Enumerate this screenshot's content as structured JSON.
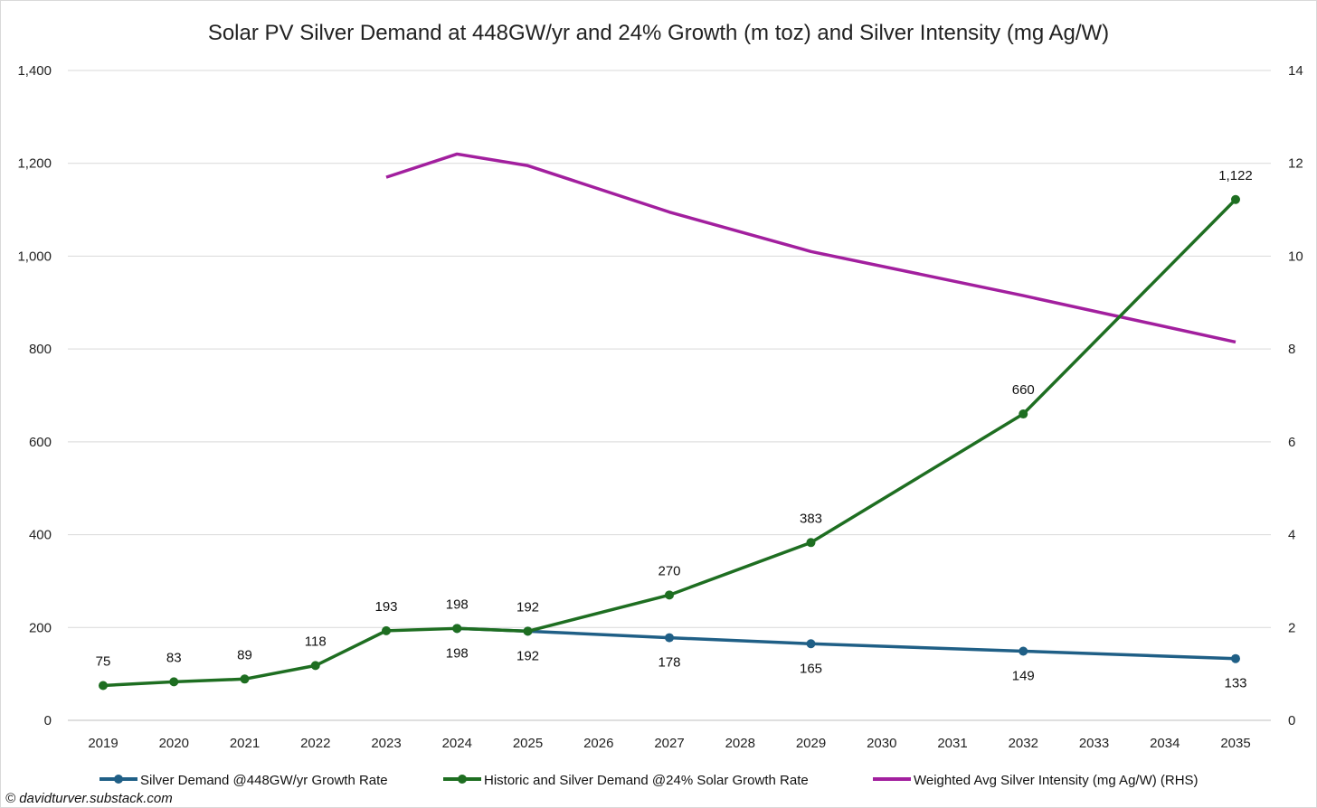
{
  "chart_data": {
    "type": "line",
    "title": "Solar PV Silver Demand at 448GW/yr and 24% Growth (m toz) and Silver Intensity (mg Ag/W)",
    "categories": [
      "2019",
      "2020",
      "2021",
      "2022",
      "2023",
      "2024",
      "2025",
      "2026",
      "2027",
      "2028",
      "2029",
      "2030",
      "2031",
      "2032",
      "2033",
      "2034",
      "2035"
    ],
    "y_left": {
      "min": 0,
      "max": 1400,
      "step": 200,
      "tick_labels": [
        "0",
        "200",
        "400",
        "600",
        "800",
        "1,000",
        "1,200",
        "1,400"
      ]
    },
    "y_right": {
      "min": 0,
      "max": 14,
      "step": 2,
      "tick_labels": [
        "0",
        "2",
        "4",
        "6",
        "8",
        "10",
        "12",
        "14"
      ]
    },
    "grid": true,
    "legend_position": "bottom",
    "series": [
      {
        "name": "Silver Demand @448GW/yr Growth Rate",
        "color": "#1f5f86",
        "axis": "left",
        "markers": true,
        "points": [
          {
            "x": "2024",
            "y": 198,
            "label": "198"
          },
          {
            "x": "2025",
            "y": 192,
            "label": "192"
          },
          {
            "x": "2027",
            "y": 178,
            "label": "178"
          },
          {
            "x": "2029",
            "y": 165,
            "label": "165"
          },
          {
            "x": "2032",
            "y": 149,
            "label": "149"
          },
          {
            "x": "2035",
            "y": 133,
            "label": "133"
          }
        ]
      },
      {
        "name": "Historic and Silver Demand @24% Solar Growth Rate",
        "color": "#1e6e21",
        "axis": "left",
        "markers": true,
        "points": [
          {
            "x": "2019",
            "y": 75,
            "label": "75"
          },
          {
            "x": "2020",
            "y": 83,
            "label": "83"
          },
          {
            "x": "2021",
            "y": 89,
            "label": "89"
          },
          {
            "x": "2022",
            "y": 118,
            "label": "118"
          },
          {
            "x": "2023",
            "y": 193,
            "label": "193"
          },
          {
            "x": "2024",
            "y": 198,
            "label": "198"
          },
          {
            "x": "2025",
            "y": 192,
            "label": "192"
          },
          {
            "x": "2027",
            "y": 270,
            "label": "270"
          },
          {
            "x": "2029",
            "y": 383,
            "label": "383"
          },
          {
            "x": "2032",
            "y": 660,
            "label": "660"
          },
          {
            "x": "2035",
            "y": 1122,
            "label": "1,122"
          }
        ]
      },
      {
        "name": "Weighted Avg Silver Intensity (mg Ag/W) (RHS)",
        "color": "#a21f9e",
        "axis": "right",
        "markers": false,
        "points": [
          {
            "x": "2023",
            "y": 11.7
          },
          {
            "x": "2024",
            "y": 12.2
          },
          {
            "x": "2025",
            "y": 11.95
          },
          {
            "x": "2027",
            "y": 10.95
          },
          {
            "x": "2029",
            "y": 10.1
          },
          {
            "x": "2032",
            "y": 9.15
          },
          {
            "x": "2035",
            "y": 8.15
          }
        ]
      }
    ]
  },
  "credit": "© davidturver.substack.com"
}
